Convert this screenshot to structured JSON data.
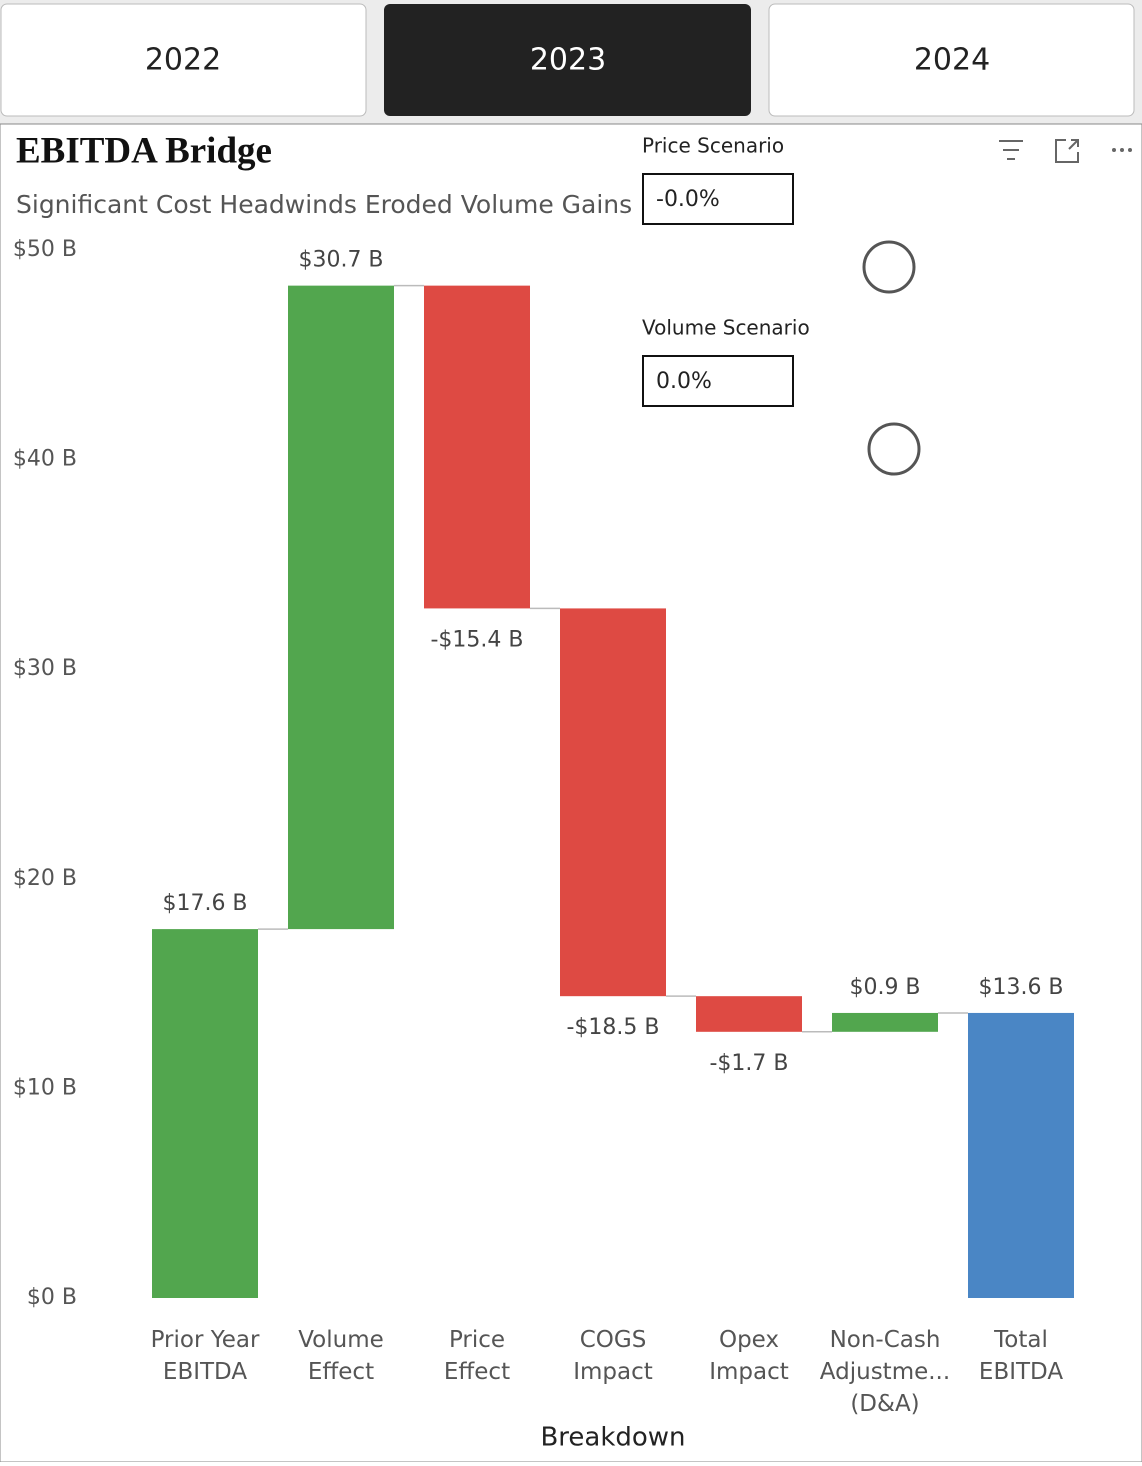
{
  "tabs": [
    "2022",
    "2023",
    "2024"
  ],
  "scenarios": [
    {
      "label": "Price Scenario",
      "value": "-0.0%"
    },
    {
      "label": "Volume Scenario",
      "value": "0.0%"
    }
  ],
  "chart_data": {
    "type": "waterfall",
    "title": "EBITDA Bridge",
    "subtitle": "Significant Cost Headwinds Eroded Volume Gains",
    "x_label": "Breakdown",
    "categories": [
      "Prior Year EBITDA",
      "Volume Effect",
      "Price Effect",
      "COGS Impact",
      "Opex Impact",
      "Non-Cash Adjustme... (D&A)",
      "Total EBITDA"
    ],
    "values": [
      17.6,
      30.7,
      -15.4,
      -18.5,
      -1.7,
      0.9,
      13.6
    ],
    "value_labels": [
      "$17.6 B",
      "$30.7 B",
      "-$15.4 B",
      "-$18.5 B",
      "-$1.7 B",
      "$0.9 B",
      "$13.6 B"
    ],
    "increase_color": "#52a64e",
    "decrease_color": "#de4a43",
    "total_color": "#4a86c5",
    "ylim": [
      0,
      50
    ],
    "yticks": [
      {
        "value": 0,
        "label": "$0 B"
      },
      {
        "value": 10,
        "label": "$10 B"
      },
      {
        "value": 20,
        "label": "$20 B"
      },
      {
        "value": 30,
        "label": "$30 B"
      },
      {
        "value": 40,
        "label": "$40 B"
      },
      {
        "value": 50,
        "label": "$50 B"
      }
    ]
  }
}
